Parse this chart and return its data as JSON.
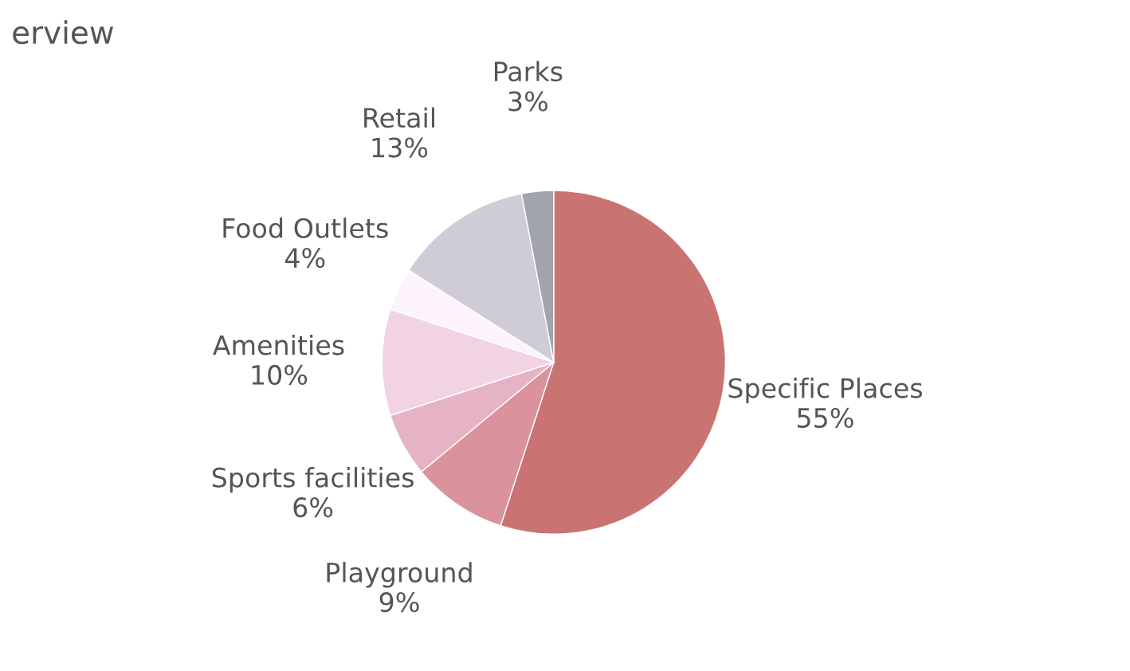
{
  "chart_data": {
    "type": "pie",
    "title": "erview",
    "categories": [
      "Specific Places",
      "Playground",
      "Sports facilities",
      "Amenities",
      "Food Outlets",
      "Retail",
      "Parks"
    ],
    "values": [
      55,
      9,
      6,
      10,
      4,
      13,
      3
    ],
    "value_labels": [
      "55%",
      "9%",
      "6%",
      "10%",
      "4%",
      "13%",
      "3%"
    ],
    "colors": [
      "#c97473",
      "#da929d",
      "#e6b3c5",
      "#f1d3e4",
      "#fdf3fb",
      "#d0ccd7",
      "#a2a4ad"
    ],
    "legend": false
  }
}
